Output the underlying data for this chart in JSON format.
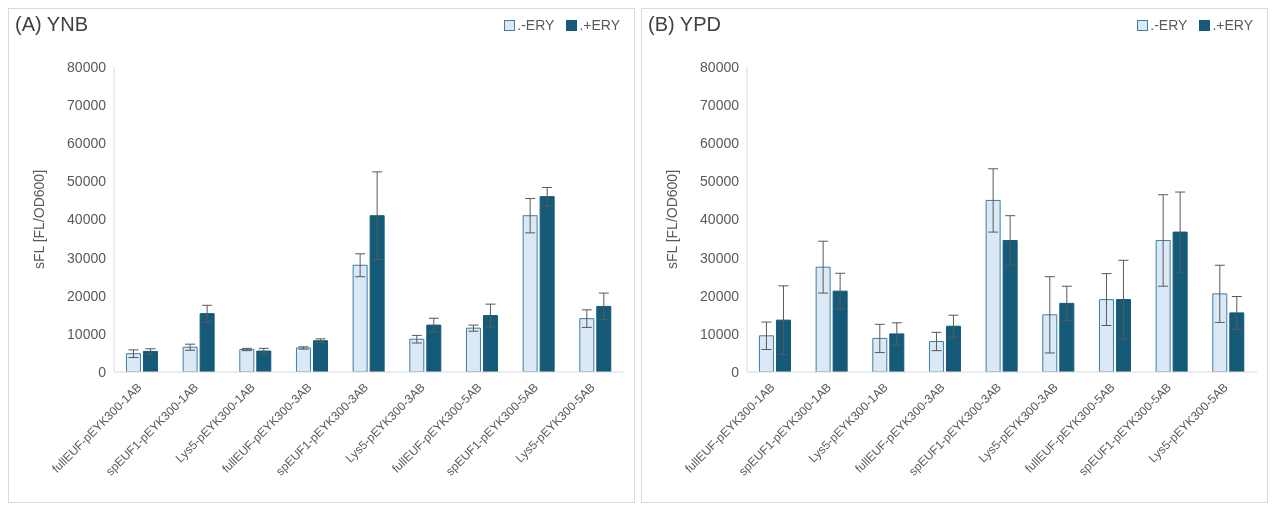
{
  "chart_data": [
    {
      "type": "bar",
      "title": "(A) YNB",
      "ylabel": "sFL [FL/OD600]",
      "categories": [
        "fullEUF-pEYK300-1AB",
        "spEUF1-pEYK300-1AB",
        "Lys5-pEYK300-1AB",
        "fullEUF-pEYK300-3AB",
        "spEUF1-pEYK300-3AB",
        "Lys5-pEYK300-3AB",
        "fullEUF-pEYK300-5AB",
        "spEUF1-pEYK300-5AB",
        "Lys5-pEYK300-5AB"
      ],
      "series": [
        {
          "name": ".-ERY",
          "color": "#dbe8f6",
          "values": [
            4800,
            6500,
            5900,
            6300,
            28000,
            8600,
            11500,
            41000,
            14000
          ],
          "errors": [
            1000,
            800,
            300,
            300,
            3000,
            1000,
            800,
            4500,
            2300
          ]
        },
        {
          "name": ".+ERY",
          "color": "#155a78",
          "values": [
            5400,
            15300,
            5500,
            8200,
            41000,
            12300,
            14800,
            46000,
            17200
          ],
          "errors": [
            700,
            2200,
            700,
            500,
            11500,
            1800,
            3000,
            2400,
            3500
          ]
        }
      ],
      "ylim": [
        0,
        80000
      ],
      "yticks": [
        0,
        10000,
        20000,
        30000,
        40000,
        50000,
        60000,
        70000,
        80000
      ],
      "grid": false,
      "legend": "top right"
    },
    {
      "type": "bar",
      "title": "(B) YPD",
      "ylabel": "sFL [FL/OD600]",
      "categories": [
        "fullEUF-pEYK300-1AB",
        "spEUF1-pEYK300-1AB",
        "Lys5-pEYK300-1AB",
        "fullEUF-pEYK300-3AB",
        "spEUF1-pEYK300-3AB",
        "Lys5-pEYK300-3AB",
        "fullEUF-pEYK300-5AB",
        "spEUF1-pEYK300-5AB",
        "Lys5-pEYK300-5AB"
      ],
      "series": [
        {
          "name": ".-ERY",
          "color": "#dbe8f6",
          "values": [
            9500,
            27500,
            8800,
            8000,
            45000,
            15000,
            19000,
            34500,
            20500
          ],
          "errors": [
            3600,
            6800,
            3700,
            2400,
            8300,
            10000,
            6800,
            12000,
            7500
          ]
        },
        {
          "name": ".+ERY",
          "color": "#155a78",
          "values": [
            13600,
            21200,
            10000,
            12000,
            34500,
            18000,
            19000,
            36700,
            15500
          ],
          "errors": [
            9000,
            4700,
            2900,
            2900,
            6500,
            4500,
            10300,
            10500,
            4300
          ]
        }
      ],
      "ylim": [
        0,
        80000
      ],
      "yticks": [
        0,
        10000,
        20000,
        30000,
        40000,
        50000,
        60000,
        70000,
        80000
      ],
      "grid": false,
      "legend": "top right"
    }
  ]
}
